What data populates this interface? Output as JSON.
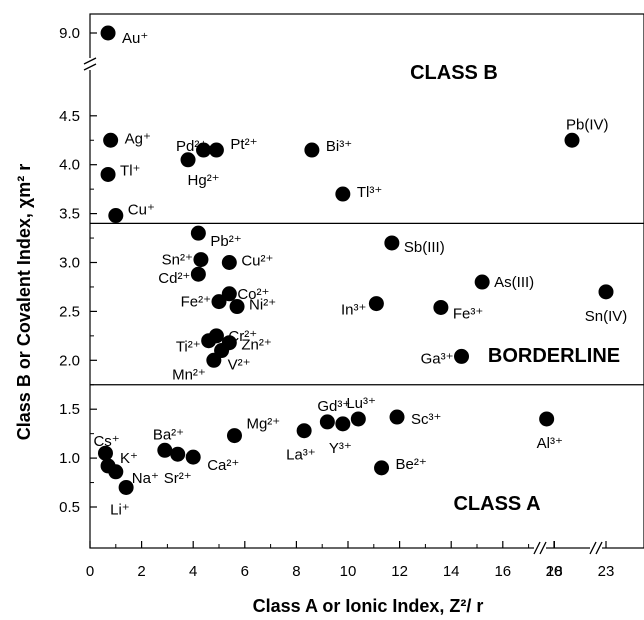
{
  "chart_data": {
    "type": "scatter",
    "xlabel": "Class A or Ionic Index, Z²/ r",
    "ylabel": "Class B or Covalent Index, χm² r",
    "x_ticks": [
      "0",
      "2",
      "4",
      "6",
      "8",
      "10",
      "12",
      "14",
      "16",
      "18",
      "20",
      "23"
    ],
    "y_ticks": [
      "0.5",
      "1.0",
      "1.5",
      "2.0",
      "2.5",
      "3.0",
      "3.5",
      "4.0",
      "4.5",
      "9.0"
    ],
    "x_break_labels": [
      "20",
      "23"
    ],
    "regions": [
      {
        "name": "CLASS B",
        "boundary_y": 3.4
      },
      {
        "name": "BORDERLINE",
        "boundary_y": 1.75
      },
      {
        "name": "CLASS A"
      }
    ],
    "points": [
      {
        "label": "Au⁺",
        "x": 0.7,
        "y": 9.0
      },
      {
        "label": "Ag⁺",
        "x": 0.8,
        "y": 4.25
      },
      {
        "label": "Tl⁺",
        "x": 0.7,
        "y": 3.9
      },
      {
        "label": "Cu⁺",
        "x": 1.0,
        "y": 3.48
      },
      {
        "label": "Pd²⁺",
        "x": 3.8,
        "y": 4.05
      },
      {
        "label": "Pt²⁺",
        "x": 4.9,
        "y": 4.15
      },
      {
        "label": "Hg²⁺",
        "x": 4.4,
        "y": 4.15
      },
      {
        "label": "Bi³⁺",
        "x": 8.6,
        "y": 4.15
      },
      {
        "label": "Tl³⁺",
        "x": 9.8,
        "y": 3.7
      },
      {
        "label": "Pb(IV)",
        "x": 21.0,
        "y": 4.25
      },
      {
        "label": "Pb²⁺",
        "x": 4.2,
        "y": 3.3
      },
      {
        "label": "Sn²⁺",
        "x": 4.3,
        "y": 3.03
      },
      {
        "label": "Cu²⁺",
        "x": 5.4,
        "y": 3.0
      },
      {
        "label": "Cd²⁺",
        "x": 4.2,
        "y": 2.88
      },
      {
        "label": "Co²⁺",
        "x": 5.4,
        "y": 2.68
      },
      {
        "label": "Fe²⁺",
        "x": 5.0,
        "y": 2.6
      },
      {
        "label": "Ni²⁺",
        "x": 5.7,
        "y": 2.55
      },
      {
        "label": "Cr²⁺",
        "x": 4.9,
        "y": 2.25
      },
      {
        "label": "Ti²⁺",
        "x": 4.6,
        "y": 2.2
      },
      {
        "label": "Zn²⁺",
        "x": 5.4,
        "y": 2.18
      },
      {
        "label": "V²⁺",
        "x": 5.1,
        "y": 2.1
      },
      {
        "label": "Mn²⁺",
        "x": 4.8,
        "y": 2.0
      },
      {
        "label": "Sb(III)",
        "x": 11.7,
        "y": 3.2
      },
      {
        "label": "As(III)",
        "x": 15.2,
        "y": 2.8
      },
      {
        "label": "In³⁺",
        "x": 11.1,
        "y": 2.58
      },
      {
        "label": "Fe³⁺",
        "x": 13.6,
        "y": 2.54
      },
      {
        "label": "Ga³⁺",
        "x": 14.4,
        "y": 2.04
      },
      {
        "label": "Sn(IV)",
        "x": 23.0,
        "y": 2.7
      },
      {
        "label": "Cs⁺",
        "x": 0.6,
        "y": 1.05
      },
      {
        "label": "K⁺",
        "x": 0.7,
        "y": 0.92
      },
      {
        "label": "Na⁺",
        "x": 1.0,
        "y": 0.86
      },
      {
        "label": "Li⁺",
        "x": 1.4,
        "y": 0.7
      },
      {
        "label": "Ba²⁺",
        "x": 2.9,
        "y": 1.08
      },
      {
        "label": "Sr²⁺",
        "x": 3.4,
        "y": 1.04
      },
      {
        "label": "Ca²⁺",
        "x": 4.0,
        "y": 1.01
      },
      {
        "label": "Mg²⁺",
        "x": 5.6,
        "y": 1.23
      },
      {
        "label": "La³⁺",
        "x": 8.3,
        "y": 1.28
      },
      {
        "label": "Gd³⁺",
        "x": 9.2,
        "y": 1.37
      },
      {
        "label": "Y³⁺",
        "x": 9.8,
        "y": 1.35
      },
      {
        "label": "Lu³⁺",
        "x": 10.4,
        "y": 1.4
      },
      {
        "label": "Sc³⁺",
        "x": 11.9,
        "y": 1.42
      },
      {
        "label": "Be²⁺",
        "x": 11.3,
        "y": 0.9
      },
      {
        "label": "Al³⁺",
        "x": 17.7,
        "y": 1.4
      }
    ]
  }
}
